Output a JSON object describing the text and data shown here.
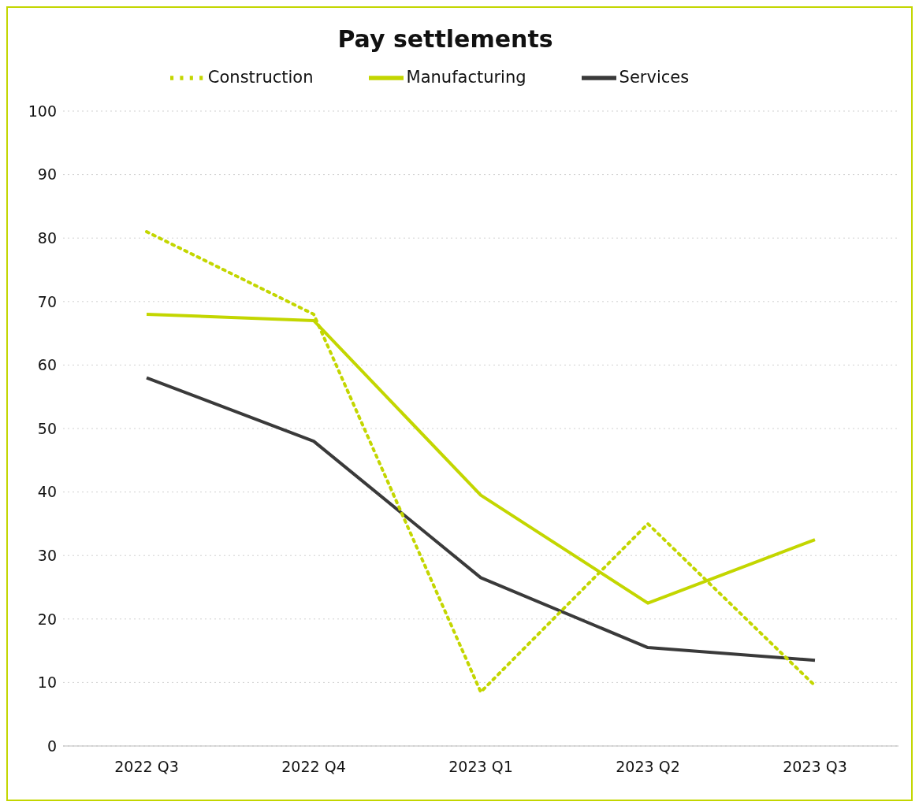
{
  "chart_data": {
    "type": "line",
    "title": "Pay settlements",
    "categories": [
      "2022 Q3",
      "2022 Q4",
      "2023 Q1",
      "2023 Q2",
      "2023 Q3"
    ],
    "series": [
      {
        "name": "Manufacturing",
        "color": "#c3d600",
        "values": [
          68,
          67,
          39.5,
          22.5,
          32.5
        ],
        "line_style": "solid"
      },
      {
        "name": "Services",
        "color": "#3a3a3a",
        "values": [
          58,
          48,
          26.5,
          15.5,
          13.5
        ],
        "line_style": "solid"
      },
      {
        "name": "Construction",
        "color": "#c3d600",
        "values": [
          81,
          68,
          8.5,
          35,
          9.5
        ],
        "line_style": "dotted"
      }
    ],
    "ylim": [
      0,
      100
    ],
    "yticks": [
      0,
      10,
      20,
      30,
      40,
      50,
      60,
      70,
      80,
      90,
      100
    ],
    "grid": "y",
    "legend": "top",
    "marker": "none"
  }
}
